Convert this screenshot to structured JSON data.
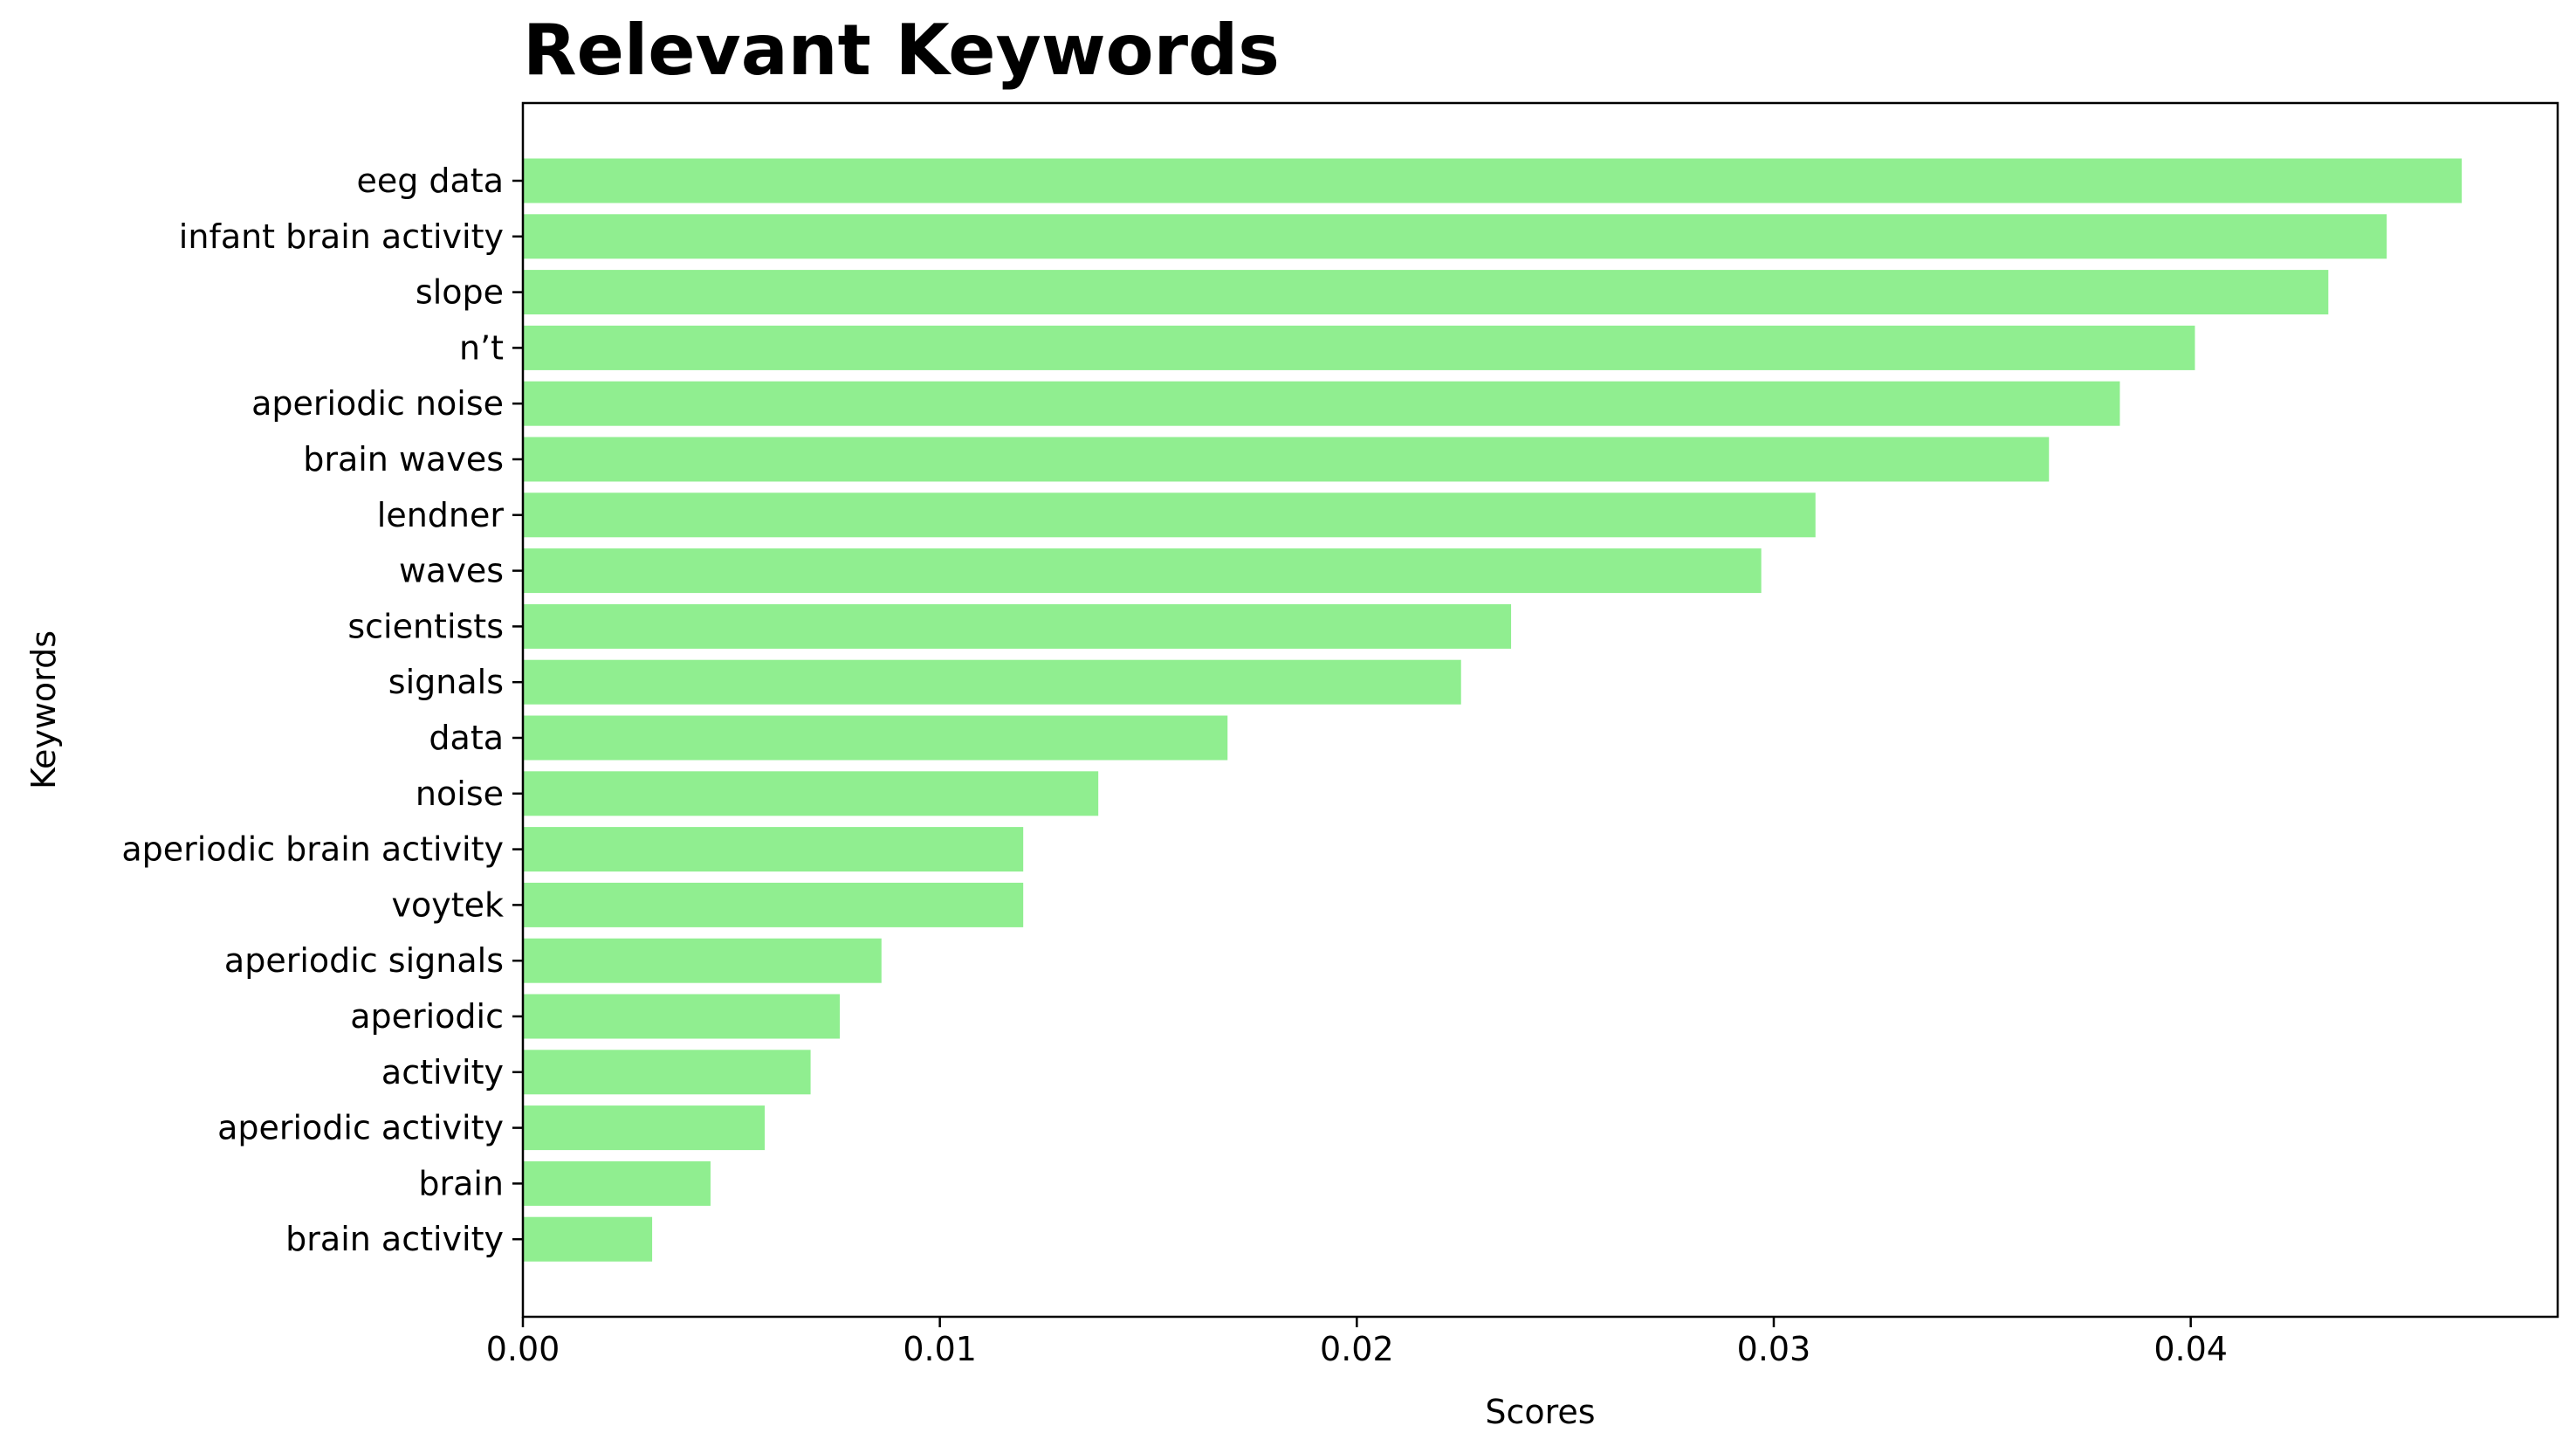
{
  "chart_data": {
    "type": "bar",
    "orientation": "horizontal",
    "title": "Relevant Keywords",
    "xlabel": "Scores",
    "ylabel": "Keywords",
    "xlim": [
      0,
      0.0488
    ],
    "x_ticks": [
      "0.00",
      "0.01",
      "0.02",
      "0.03",
      "0.04"
    ],
    "bar_color": "#90EE90",
    "grid": false,
    "categories": [
      "eeg data",
      "infant brain activity",
      "slope",
      "n’t",
      "aperiodic noise",
      "brain waves",
      "lendner",
      "waves",
      "scientists",
      "signals",
      "data",
      "noise",
      "aperiodic brain activity",
      "voytek",
      "aperiodic signals",
      "aperiodic",
      "activity",
      "aperiodic activity",
      "brain",
      "brain activity"
    ],
    "values": [
      0.0465,
      0.0447,
      0.0433,
      0.0401,
      0.0383,
      0.0366,
      0.031,
      0.0297,
      0.0237,
      0.0225,
      0.0169,
      0.0138,
      0.012,
      0.012,
      0.0086,
      0.0076,
      0.0069,
      0.0058,
      0.0045,
      0.0031
    ]
  }
}
